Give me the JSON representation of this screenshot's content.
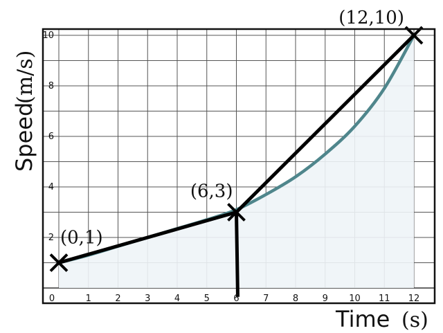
{
  "chart_data": {
    "type": "line",
    "xlabel": "Time",
    "xunit": "(s)",
    "ylabel": "Speed",
    "yunit": "(m/s)",
    "xlim": [
      0,
      12
    ],
    "ylim": [
      0,
      10
    ],
    "x_ticks": [
      "0",
      "1",
      "2",
      "3",
      "4",
      "5",
      "6",
      "7",
      "8",
      "9",
      "10",
      "11",
      "12"
    ],
    "y_ticks": [
      "2",
      "4",
      "6",
      "8",
      "10"
    ],
    "grid": true,
    "curve": {
      "x": [
        0,
        1,
        2,
        3,
        4,
        5,
        6,
        7,
        8,
        9,
        10,
        11,
        12
      ],
      "y": [
        1.0,
        1.3,
        1.65,
        2.0,
        2.35,
        2.7,
        3.1,
        3.7,
        4.4,
        5.3,
        6.4,
        7.9,
        10.0
      ],
      "shaded_area": true,
      "color": "#4f868c",
      "fill": "#eef4f7"
    },
    "chords": [
      {
        "x": [
          0,
          6
        ],
        "y": [
          1,
          3
        ]
      },
      {
        "x": [
          6,
          12
        ],
        "y": [
          3,
          10
        ]
      }
    ],
    "vertical_line": {
      "x": 6,
      "y_from": -0.35,
      "y_to": 3
    },
    "points": [
      {
        "x": 0,
        "y": 1,
        "label": "(0,1)"
      },
      {
        "x": 6,
        "y": 3,
        "label": "(6,3)"
      },
      {
        "x": 12,
        "y": 10,
        "label": "(12,10)"
      }
    ]
  }
}
